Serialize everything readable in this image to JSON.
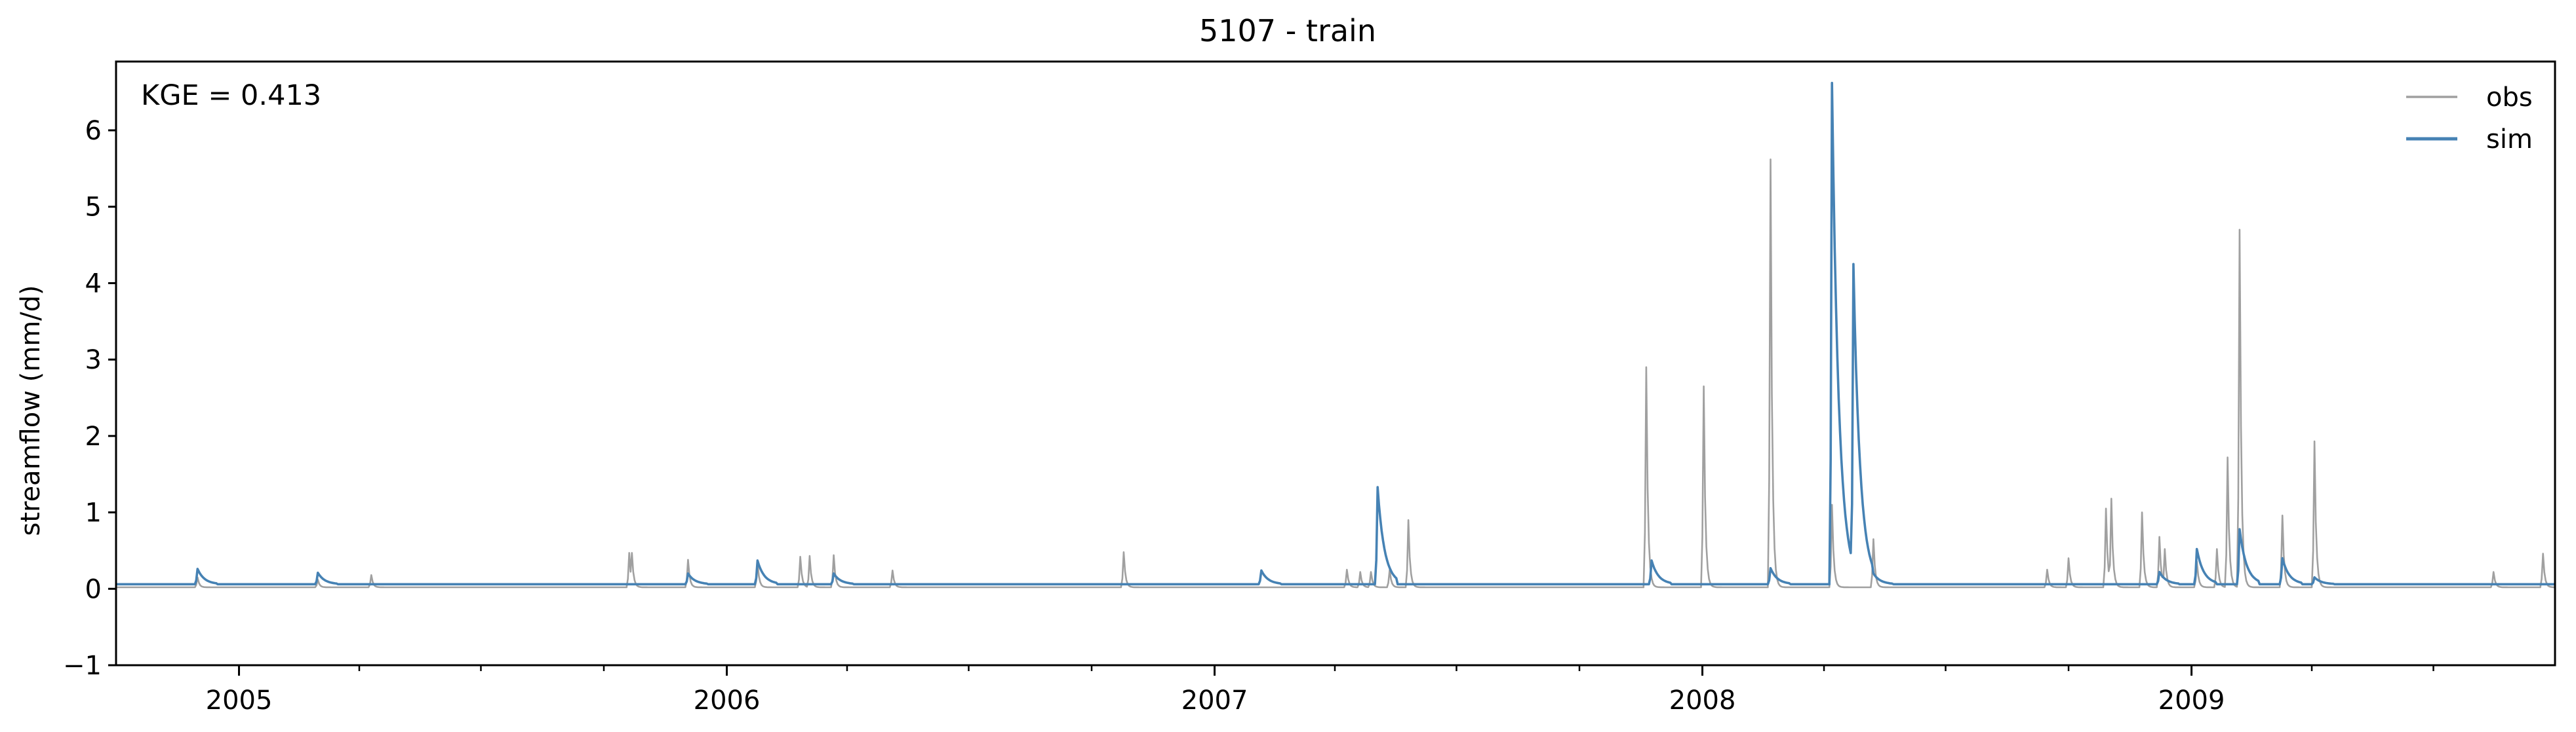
{
  "chart_data": {
    "type": "line",
    "title": "5107 - train",
    "xlabel": "",
    "ylabel": "streamflow (mm/d)",
    "annotation": "KGE = 0.413",
    "xlim": [
      "2004-10-01",
      "2009-09-30"
    ],
    "ylim": [
      -1,
      6.9
    ],
    "yticks": [
      -1,
      0,
      1,
      2,
      3,
      4,
      5,
      6
    ],
    "xticks": [
      {
        "date": "2005-01-01",
        "label": "2005"
      },
      {
        "date": "2006-01-01",
        "label": "2006"
      },
      {
        "date": "2007-01-01",
        "label": "2007"
      },
      {
        "date": "2008-01-01",
        "label": "2008"
      },
      {
        "date": "2009-01-01",
        "label": "2009"
      }
    ],
    "grid": false,
    "legend_position": "top-right",
    "obs_baseline": 0.02,
    "sim_baseline": 0.06,
    "series": [
      {
        "name": "obs",
        "color": "#a0a0a0",
        "peaks": [
          [
            "2004-12-01",
            0.15
          ],
          [
            "2005-03-01",
            0.12
          ],
          [
            "2005-04-10",
            0.18
          ],
          [
            "2005-10-20",
            0.47
          ],
          [
            "2005-10-22",
            0.47
          ],
          [
            "2005-12-03",
            0.38
          ],
          [
            "2006-01-24",
            0.35
          ],
          [
            "2006-02-25",
            0.42
          ],
          [
            "2006-03-04",
            0.43
          ],
          [
            "2006-03-22",
            0.44
          ],
          [
            "2006-05-05",
            0.24
          ],
          [
            "2006-10-25",
            0.48
          ],
          [
            "2007-04-10",
            0.25
          ],
          [
            "2007-04-20",
            0.22
          ],
          [
            "2007-04-28",
            0.22
          ],
          [
            "2007-05-12",
            0.25
          ],
          [
            "2007-05-26",
            0.9
          ],
          [
            "2007-11-20",
            2.9
          ],
          [
            "2008-01-02",
            2.65
          ],
          [
            "2008-02-21",
            5.62
          ],
          [
            "2008-04-07",
            1.1
          ],
          [
            "2008-05-08",
            0.65
          ],
          [
            "2008-09-15",
            0.25
          ],
          [
            "2008-10-01",
            0.4
          ],
          [
            "2008-10-29",
            1.05
          ],
          [
            "2008-11-02",
            1.18
          ],
          [
            "2008-11-25",
            1.0
          ],
          [
            "2008-12-08",
            0.68
          ],
          [
            "2008-12-12",
            0.52
          ],
          [
            "2009-01-05",
            0.36
          ],
          [
            "2009-01-20",
            0.52
          ],
          [
            "2009-01-28",
            1.72
          ],
          [
            "2009-02-06",
            4.7
          ],
          [
            "2009-03-10",
            0.96
          ],
          [
            "2009-04-03",
            1.93
          ],
          [
            "2009-08-15",
            0.22
          ],
          [
            "2009-09-21",
            0.46
          ]
        ]
      },
      {
        "name": "sim",
        "color": "#4682b4",
        "peaks": [
          [
            "2004-12-01",
            0.26
          ],
          [
            "2005-03-01",
            0.21
          ],
          [
            "2005-12-03",
            0.2
          ],
          [
            "2006-01-24",
            0.37
          ],
          [
            "2006-03-22",
            0.2
          ],
          [
            "2007-02-05",
            0.24
          ],
          [
            "2007-05-03",
            1.33
          ],
          [
            "2007-11-24",
            0.37
          ],
          [
            "2008-02-21",
            0.27
          ],
          [
            "2008-04-07",
            6.62
          ],
          [
            "2008-04-23",
            4.25
          ],
          [
            "2008-05-08",
            0.2
          ],
          [
            "2008-12-08",
            0.22
          ],
          [
            "2009-01-05",
            0.52
          ],
          [
            "2009-02-06",
            0.78
          ],
          [
            "2009-03-10",
            0.4
          ],
          [
            "2009-04-03",
            0.15
          ]
        ]
      }
    ]
  }
}
